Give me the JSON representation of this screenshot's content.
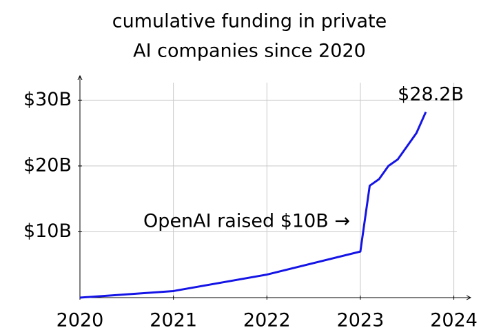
{
  "chart_data": {
    "type": "line",
    "title": [
      "cumulative funding in private",
      "AI companies since 2020"
    ],
    "x": [
      2020,
      2021,
      2022,
      2023,
      2023.1,
      2023.2,
      2023.3,
      2023.4,
      2023.5,
      2023.6,
      2023.7
    ],
    "series": [
      {
        "name": "cumulative funding",
        "color": "#1414e6",
        "values": [
          0,
          1,
          3.5,
          7,
          17,
          18,
          20,
          21,
          23,
          25,
          28.2
        ]
      }
    ],
    "xlim": [
      2020,
      2024.18
    ],
    "ylim": [
      0,
      33.7
    ],
    "xticks": [
      2020,
      2021,
      2022,
      2023,
      2024
    ],
    "yticks": [
      {
        "value": 10,
        "label": "$10B"
      },
      {
        "value": 20,
        "label": "$20B"
      },
      {
        "value": 30,
        "label": "$30B"
      }
    ],
    "grid": true,
    "annotations": [
      "OpenAI raised $10B →",
      "$28.2B"
    ]
  }
}
